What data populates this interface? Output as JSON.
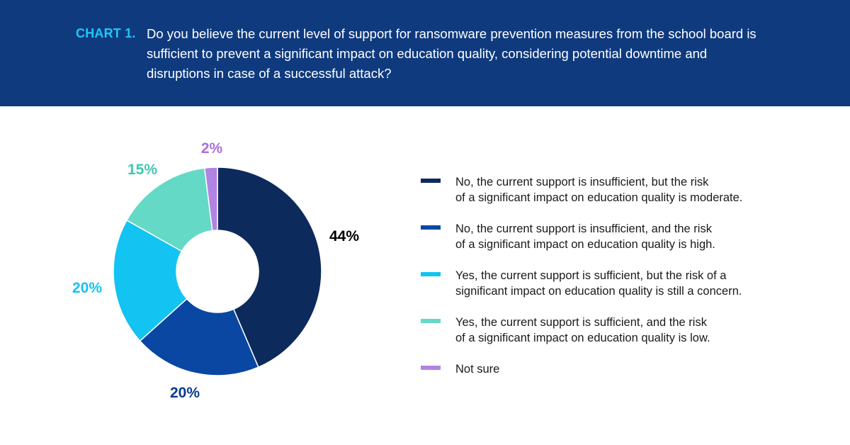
{
  "header": {
    "chart_number": "CHART 1.",
    "question": "Do you believe the current level of support for ransomware prevention measures from the school board is sufficient to prevent a significant impact on education quality, considering potential downtime and disruptions in case of a successful attack?"
  },
  "chart_data": {
    "type": "pie",
    "donut": true,
    "categories": [
      "No, the current support is insufficient, but the risk of a significant impact on education quality is moderate.",
      "No, the current support is insufficient, and the risk of a significant impact on education quality is high.",
      "Yes, the current support is sufficient, but the risk of a significant impact on education quality is still a concern.",
      "Yes, the current support is sufficient, and the risk of a significant impact on education quality is low.",
      "Not sure"
    ],
    "values": [
      44,
      20,
      20,
      15,
      2
    ],
    "value_labels": [
      "44%",
      "20%",
      "20%",
      "15%",
      "2%"
    ],
    "colors": [
      "#0d2a5c",
      "#0a47a3",
      "#13c3f2",
      "#64d9c6",
      "#b184e3"
    ],
    "label_colors": [
      "#000000",
      "#0a3a8c",
      "#13c3f2",
      "#3cc9b0",
      "#a871e0"
    ],
    "legend_placement": "right"
  },
  "legend": {
    "items": [
      {
        "line1": "No, the current support is insufficient, but the risk",
        "line2": "of a significant impact on education quality is moderate."
      },
      {
        "line1": "No, the current support is insufficient, and the risk",
        "line2": "of a significant impact on education quality is high."
      },
      {
        "line1": "Yes, the current support is sufficient, but the risk of a",
        "line2": "significant impact on education quality is still a concern."
      },
      {
        "line1": "Yes, the current support is sufficient, and the risk",
        "line2": "of a significant impact on education quality is low."
      },
      {
        "line1": "Not sure",
        "line2": ""
      }
    ]
  }
}
